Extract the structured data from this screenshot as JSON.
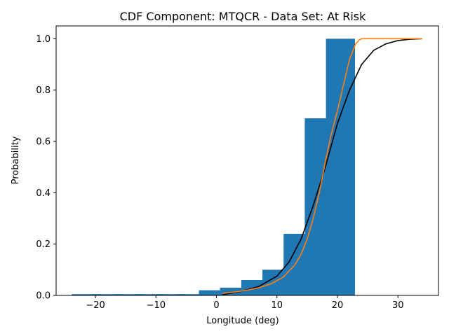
{
  "chart_data": {
    "type": "bar",
    "title": "CDF Component: MTQCR - Data Set: At Risk",
    "xlabel": "Longitude (deg)",
    "ylabel": "Probability",
    "xlim": [
      -26.5,
      36.7
    ],
    "ylim": [
      0,
      1.05
    ],
    "xticks": [
      -20,
      -10,
      0,
      10,
      20,
      30
    ],
    "yticks": [
      0.0,
      0.2,
      0.4,
      0.6,
      0.8,
      1.0
    ],
    "grid": false,
    "bar_width": 6,
    "bars": {
      "x": [
        -21.5,
        -18,
        -14.5,
        -11,
        -7.5,
        -4,
        -0.5,
        3,
        6.5,
        10,
        13.5,
        17,
        20.5
      ],
      "values": [
        0.005,
        0.005,
        0.005,
        0.005,
        0.005,
        0.005,
        0.02,
        0.03,
        0.06,
        0.1,
        0.24,
        0.69,
        1.0
      ],
      "color": "#1f77b4"
    },
    "series": [
      {
        "color": "#000000",
        "x": [
          1,
          4,
          7,
          10,
          12,
          14,
          16,
          18,
          20,
          22,
          24,
          26,
          28,
          30,
          32,
          34
        ],
        "values": [
          0.003,
          0.015,
          0.035,
          0.075,
          0.13,
          0.22,
          0.35,
          0.5,
          0.67,
          0.8,
          0.9,
          0.955,
          0.98,
          0.993,
          0.998,
          1.0
        ]
      },
      {
        "color": "#ff7f0e",
        "x": [
          1,
          3,
          5,
          7,
          9,
          11,
          13,
          14,
          15,
          16,
          17,
          18,
          19,
          20,
          21,
          22,
          23,
          23.6,
          24,
          26,
          28,
          30,
          32,
          34
        ],
        "values": [
          0.008,
          0.013,
          0.02,
          0.03,
          0.045,
          0.07,
          0.12,
          0.16,
          0.22,
          0.3,
          0.4,
          0.52,
          0.63,
          0.72,
          0.82,
          0.92,
          0.98,
          0.995,
          1.0,
          1.0,
          1.0,
          1.0,
          1.0,
          1.0
        ]
      }
    ]
  }
}
